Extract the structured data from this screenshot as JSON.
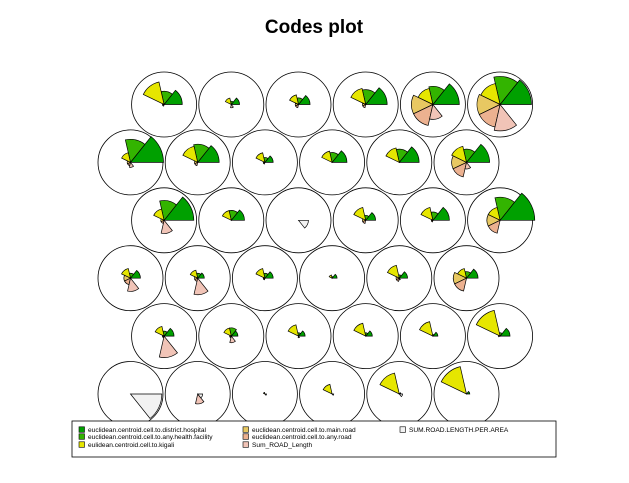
{
  "chart_data": {
    "type": "som-codes-plot",
    "title": "Codes plot",
    "grid": {
      "rows": 6,
      "cols": 6,
      "topology": "hexagonal"
    },
    "legend_position": "bottom",
    "series": [
      {
        "name": "euclidean.centroid.cell.to.district.hospital",
        "color": "#00a000"
      },
      {
        "name": "euclidean.centroid.cell.to.any.health.facility",
        "color": "#33b400"
      },
      {
        "name": "eulidean.centroid.cell.to.kigali",
        "color": "#e6e600"
      },
      {
        "name": "euclidean.centroid.cell.to.main.road",
        "color": "#e8c862"
      },
      {
        "name": "euclidean.centroid.cell.to.any.road",
        "color": "#ecb190"
      },
      {
        "name": "Sum_ROAD_Length",
        "color": "#f1c4b7"
      },
      {
        "name": "SUM.ROAD.LENGTH.PER.AREA",
        "color": "#f2f2f2"
      }
    ],
    "units": [
      [
        0.0,
        0.0,
        0.0,
        0.0,
        0.0,
        0.0,
        0.95
      ],
      [
        0.0,
        0.0,
        0.0,
        0.0,
        0.0,
        0.3,
        0.15
      ],
      [
        0.0,
        0.0,
        0.05,
        0.0,
        0.0,
        0.0,
        0.05
      ],
      [
        0.0,
        0.0,
        0.3,
        0.0,
        0.0,
        0.0,
        0.05
      ],
      [
        0.05,
        0.0,
        0.65,
        0.0,
        0.0,
        0.0,
        0.1
      ],
      [
        0.1,
        0.0,
        0.85,
        0.0,
        0.0,
        0.0,
        0.0
      ],
      [
        0.3,
        0.15,
        0.3,
        0.05,
        0.05,
        0.65,
        0.0
      ],
      [
        0.2,
        0.25,
        0.25,
        0.05,
        0.05,
        0.2,
        0.0
      ],
      [
        0.2,
        0.1,
        0.35,
        0.0,
        0.0,
        0.05,
        0.0
      ],
      [
        0.2,
        0.1,
        0.4,
        0.0,
        0.0,
        0.0,
        0.0
      ],
      [
        0.15,
        0.05,
        0.45,
        0.0,
        0.0,
        0.0,
        0.0
      ],
      [
        0.3,
        0.1,
        0.8,
        0.05,
        0.0,
        0.0,
        0.0
      ],
      [
        0.3,
        0.15,
        0.3,
        0.2,
        0.2,
        0.4,
        0.0
      ],
      [
        0.2,
        0.15,
        0.25,
        0.1,
        0.1,
        0.5,
        0.0
      ],
      [
        0.25,
        0.15,
        0.3,
        0.05,
        0.05,
        0.0,
        0.0
      ],
      [
        0.15,
        0.05,
        0.1,
        0.0,
        0.0,
        0.0,
        0.0
      ],
      [
        0.25,
        0.1,
        0.4,
        0.1,
        0.1,
        0.05,
        0.0
      ],
      [
        0.35,
        0.2,
        0.3,
        0.4,
        0.4,
        0.0,
        0.0
      ],
      [
        0.9,
        0.6,
        0.35,
        0.1,
        0.1,
        0.4,
        0.0
      ],
      [
        0.4,
        0.3,
        0.3,
        0.0,
        0.0,
        0.0,
        0.0
      ],
      [
        0.0,
        0.0,
        0.0,
        0.0,
        0.0,
        0.0,
        0.3
      ],
      [
        0.3,
        0.15,
        0.4,
        0.1,
        0.1,
        0.0,
        0.0
      ],
      [
        0.5,
        0.25,
        0.4,
        0.05,
        0.05,
        0.0,
        0.0
      ],
      [
        1.05,
        0.7,
        0.4,
        0.4,
        0.4,
        0.0,
        0.0
      ],
      [
        1.0,
        0.7,
        0.3,
        0.1,
        0.1,
        0.15,
        0.0
      ],
      [
        0.65,
        0.55,
        0.5,
        0.1,
        0.1,
        0.0,
        0.0
      ],
      [
        0.25,
        0.15,
        0.3,
        0.05,
        0.05,
        0.0,
        0.0
      ],
      [
        0.45,
        0.3,
        0.35,
        0.0,
        0.0,
        0.0,
        0.0
      ],
      [
        0.6,
        0.4,
        0.45,
        0.0,
        0.0,
        0.0,
        0.0
      ],
      [
        0.7,
        0.4,
        0.5,
        0.45,
        0.45,
        0.2,
        0.0
      ],
      [
        0.55,
        0.4,
        0.7,
        0.05,
        0.05,
        0.0,
        0.0
      ],
      [
        0.25,
        0.1,
        0.2,
        0.0,
        0.0,
        0.1,
        0.0
      ],
      [
        0.35,
        0.2,
        0.3,
        0.1,
        0.1,
        0.0,
        0.0
      ],
      [
        0.65,
        0.45,
        0.5,
        0.1,
        0.1,
        0.0,
        0.0
      ],
      [
        0.8,
        0.55,
        0.5,
        0.65,
        0.65,
        0.45,
        0.0
      ],
      [
        0.95,
        0.85,
        0.65,
        0.7,
        0.7,
        0.8,
        0.0
      ]
    ]
  }
}
